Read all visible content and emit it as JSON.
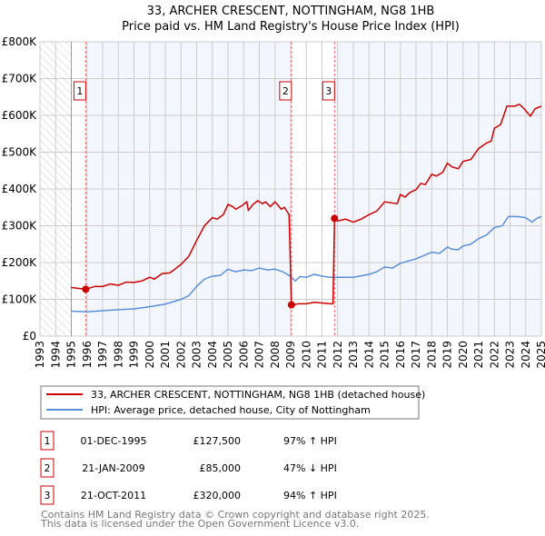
{
  "chart_data": {
    "type": "line",
    "title": "33, ARCHER CRESCENT, NOTTINGHAM, NG8 1HB",
    "subtitle": "Price paid vs. HM Land Registry's House Price Index (HPI)",
    "xlim": [
      1993,
      2025
    ],
    "ylim": [
      0,
      800000
    ],
    "x_ticks": [
      "1993",
      "1994",
      "1995",
      "1996",
      "1997",
      "1998",
      "1999",
      "2000",
      "2001",
      "2002",
      "2003",
      "2004",
      "2005",
      "2006",
      "2007",
      "2008",
      "2009",
      "2010",
      "2011",
      "2012",
      "2013",
      "2014",
      "2015",
      "2016",
      "2017",
      "2018",
      "2019",
      "2020",
      "2021",
      "2022",
      "2023",
      "2024",
      "2025"
    ],
    "y_ticks": [
      {
        "v": 0,
        "label": "£0"
      },
      {
        "v": 100000,
        "label": "£100K"
      },
      {
        "v": 200000,
        "label": "£200K"
      },
      {
        "v": 300000,
        "label": "£300K"
      },
      {
        "v": 400000,
        "label": "£400K"
      },
      {
        "v": 500000,
        "label": "£500K"
      },
      {
        "v": 600000,
        "label": "£600K"
      },
      {
        "v": 700000,
        "label": "£700K"
      },
      {
        "v": 800000,
        "label": "£800K"
      }
    ],
    "grid": true,
    "series": [
      {
        "name": "33, ARCHER CRESCENT, NOTTINGHAM, NG8 1HB (detached house)",
        "color": "#cc0000",
        "x": [
          1995.0,
          1995.92,
          1996.5,
          1997,
          1997.5,
          1998,
          1998.5,
          1999,
          1999.5,
          2000,
          2000.3,
          2000.8,
          2001.3,
          2001.7,
          2002,
          2002.5,
          2003,
          2003.5,
          2004,
          2004.3,
          2004.7,
          2005,
          2005.3,
          2005.5,
          2005.9,
          2006.2,
          2006.3,
          2006.6,
          2006.9,
          2007.2,
          2007.4,
          2007.7,
          2008,
          2008.4,
          2008.6,
          2008.9,
          2009.05,
          2009.5,
          2010,
          2010.5,
          2011,
          2011.5,
          2011.7,
          2011.8,
          2012,
          2012.5,
          2013,
          2013.5,
          2014,
          2014.5,
          2015,
          2015.8,
          2016,
          2016.3,
          2016.6,
          2017,
          2017.3,
          2017.6,
          2018,
          2018.3,
          2018.7,
          2019,
          2019.3,
          2019.7,
          2020,
          2020.5,
          2021,
          2021.5,
          2021.8,
          2022,
          2022.4,
          2022.8,
          2023.3,
          2023.6,
          2023.9,
          2024.3,
          2024.6,
          2025
        ],
        "y": [
          132000,
          127500,
          135000,
          135000,
          142000,
          138000,
          147000,
          146000,
          150000,
          160000,
          155000,
          170000,
          172000,
          185000,
          195000,
          217000,
          260000,
          300000,
          322000,
          318000,
          330000,
          358000,
          352000,
          345000,
          355000,
          365000,
          342000,
          358000,
          368000,
          360000,
          365000,
          352000,
          365000,
          345000,
          350000,
          330000,
          85000,
          88000,
          88000,
          92000,
          90000,
          88000,
          88000,
          320000,
          313000,
          318000,
          310000,
          318000,
          330000,
          340000,
          365000,
          360000,
          385000,
          378000,
          390000,
          398000,
          415000,
          412000,
          440000,
          435000,
          445000,
          470000,
          460000,
          455000,
          475000,
          480000,
          510000,
          525000,
          530000,
          565000,
          575000,
          625000,
          625000,
          630000,
          618000,
          598000,
          618000,
          625000
        ]
      },
      {
        "name": "HPI: Average price, detached house, City of Nottingham",
        "color": "#5b8fd6",
        "x": [
          1995,
          1996,
          1997,
          1998,
          1999,
          2000,
          2001,
          2002,
          2002.5,
          2003,
          2003.5,
          2004,
          2004.5,
          2005,
          2005.5,
          2006,
          2006.5,
          2007,
          2007.5,
          2008,
          2008.5,
          2009,
          2009.3,
          2009.6,
          2010,
          2010.5,
          2011,
          2011.5,
          2012,
          2013,
          2014,
          2014.5,
          2015,
          2015.5,
          2016,
          2017,
          2018,
          2018.5,
          2019,
          2019.3,
          2019.7,
          2020,
          2020.5,
          2021,
          2021.5,
          2022,
          2022.5,
          2022.9,
          2023.5,
          2024,
          2024.4,
          2024.7,
          2025
        ],
        "y": [
          68000,
          66000,
          69000,
          72000,
          74000,
          80000,
          87000,
          100000,
          110000,
          135000,
          155000,
          163000,
          165000,
          182000,
          175000,
          180000,
          178000,
          185000,
          180000,
          182000,
          175000,
          162000,
          150000,
          162000,
          160000,
          168000,
          163000,
          160000,
          160000,
          160000,
          168000,
          175000,
          188000,
          185000,
          198000,
          210000,
          228000,
          225000,
          242000,
          236000,
          235000,
          245000,
          250000,
          265000,
          275000,
          295000,
          300000,
          325000,
          325000,
          322000,
          310000,
          320000,
          325000
        ]
      }
    ],
    "sales": [
      {
        "label": "1",
        "x": 1995.92,
        "y": 127500,
        "date": "01-DEC-1995",
        "price": "£127,500",
        "hpi": "97% ↑ HPI"
      },
      {
        "label": "2",
        "x": 2009.05,
        "y": 85000,
        "date": "21-JAN-2009",
        "price": "£85,000",
        "hpi": "47% ↓ HPI"
      },
      {
        "label": "3",
        "x": 2011.8,
        "y": 320000,
        "date": "21-OCT-2011",
        "price": "£320,000",
        "hpi": "94% ↑ HPI"
      }
    ],
    "legend_position": "below"
  },
  "footer": {
    "line1": "Contains HM Land Registry data © Crown copyright and database right 2025.",
    "line2": "This data is licensed under the Open Government Licence v3.0."
  }
}
